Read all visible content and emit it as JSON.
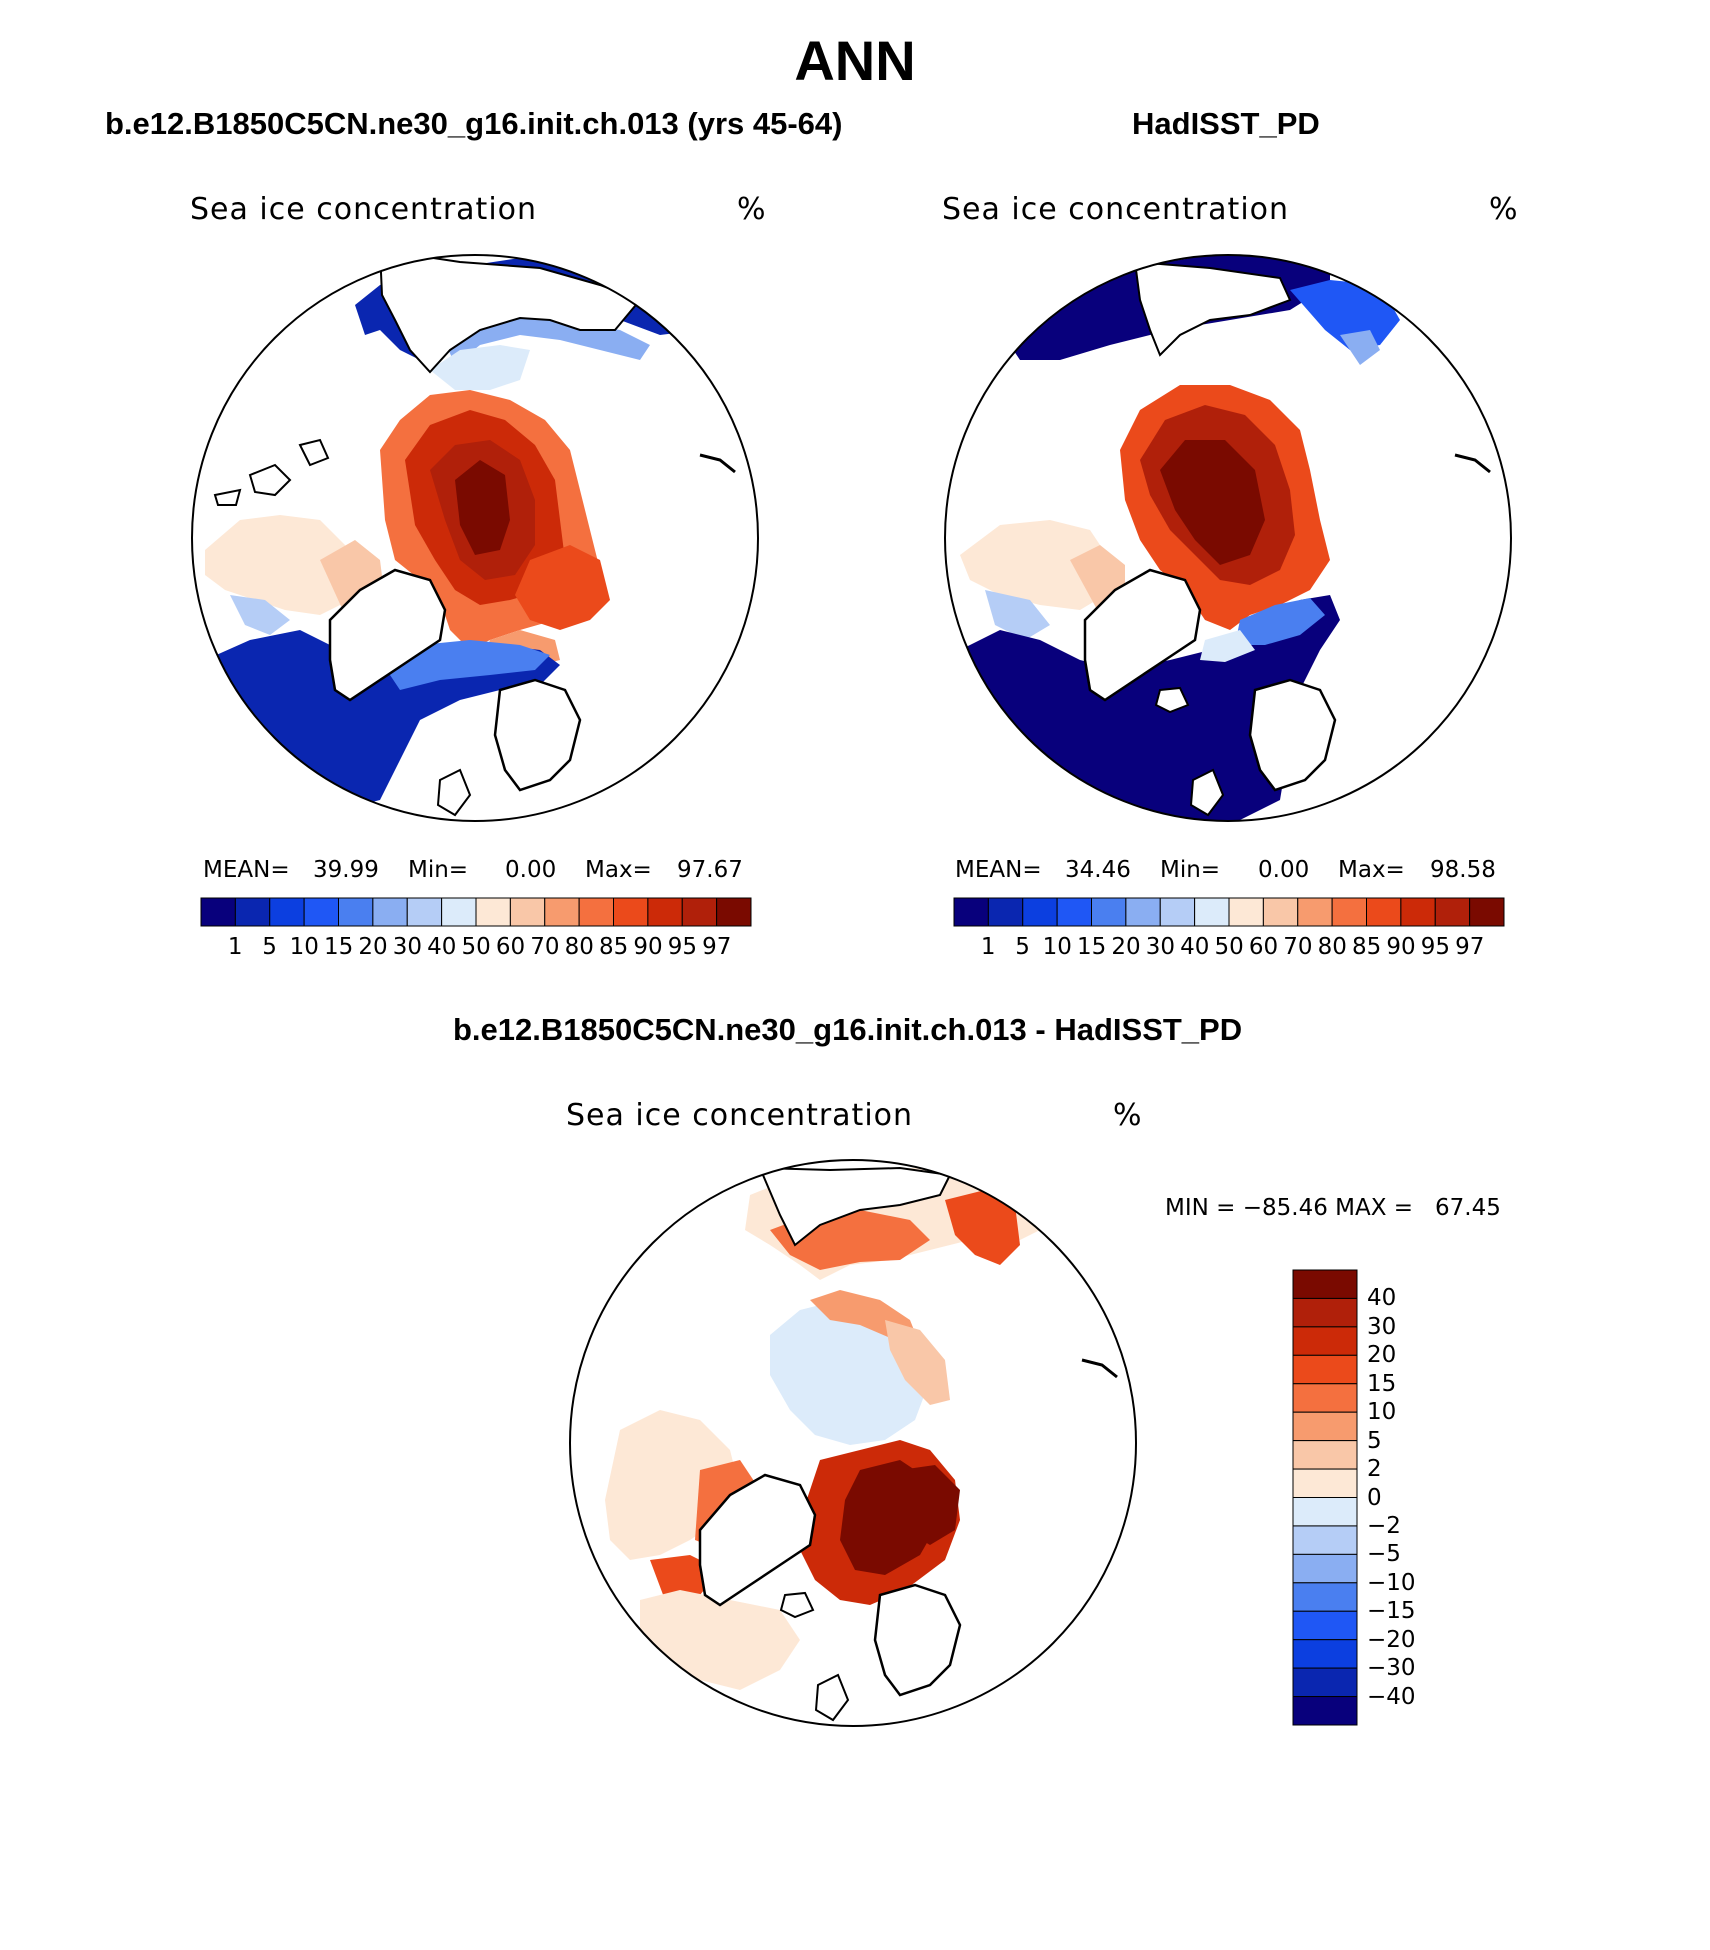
{
  "figure": {
    "title": "ANN"
  },
  "panels": {
    "model": {
      "title": "b.e12.B1850C5CN.ne30_g16.init.ch.013 (yrs 45-64)",
      "field_label": "Sea ice concentration",
      "units": "%",
      "stats": {
        "mean_label": "MEAN=",
        "mean": "39.99",
        "min_label": "Min=",
        "min": "0.00",
        "max_label": "Max=",
        "max": "97.67"
      }
    },
    "obs": {
      "title": "HadISST_PD",
      "field_label": "Sea ice concentration",
      "units": "%",
      "stats": {
        "mean_label": "MEAN=",
        "mean": "34.46",
        "min_label": "Min=",
        "min": "0.00",
        "max_label": "Max=",
        "max": "98.58"
      }
    },
    "diff": {
      "title": "b.e12.B1850C5CN.ne30_g16.init.ch.013 - HadISST_PD",
      "field_label": "Sea ice concentration",
      "units": "%",
      "minmax_text": "MIN = −85.46 MAX =   67.45"
    }
  },
  "colorbars": {
    "abs": {
      "levels": [
        "1",
        "5",
        "10",
        "15",
        "20",
        "30",
        "40",
        "50",
        "60",
        "70",
        "80",
        "85",
        "90",
        "95",
        "97"
      ],
      "colors": [
        "#08007c",
        "#0a26b0",
        "#0c3fe0",
        "#1f57f5",
        "#4a7ff0",
        "#8aaef2",
        "#b5cdf6",
        "#dcebfa",
        "#fde8d6",
        "#f9c7a8",
        "#f79b6e",
        "#f4703f",
        "#eb4a1b",
        "#cc2a08",
        "#b0200a",
        "#7a0a00"
      ]
    },
    "diff": {
      "levels": [
        "40",
        "30",
        "20",
        "15",
        "10",
        "5",
        "2",
        "0",
        "−2",
        "−5",
        "−10",
        "−15",
        "−20",
        "−30",
        "−40"
      ],
      "colors": [
        "#7a0a00",
        "#b0200a",
        "#cc2a08",
        "#eb4a1b",
        "#f4703f",
        "#f79b6e",
        "#f9c7a8",
        "#fde8d6",
        "#dcebfa",
        "#b5cdf6",
        "#8aaef2",
        "#4a7ff0",
        "#1f57f5",
        "#0c3fe0",
        "#0a26b0",
        "#08007c"
      ]
    }
  },
  "maps": {
    "projection": "north-polar stereographic",
    "model_field": "Arctic ice pack 90-97 near pole; 60-90 in Beaufort/Siberian seas; low ice 1-40 in Labrador, Greenland-Norwegian seas and Bering/Okhotsk",
    "obs_field": "Arctic ice pack >97 north of Canada/Greenland; sharp ice edge in Greenland-Norwegian seas; open water (<1) over North Atlantic and North Pacific",
    "diff_field": "Large positive differences (>40) in Barents and Greenland seas; small negative differences (-2 to -5) over central Arctic; positive 5-20 in Okhotsk/Bering"
  }
}
